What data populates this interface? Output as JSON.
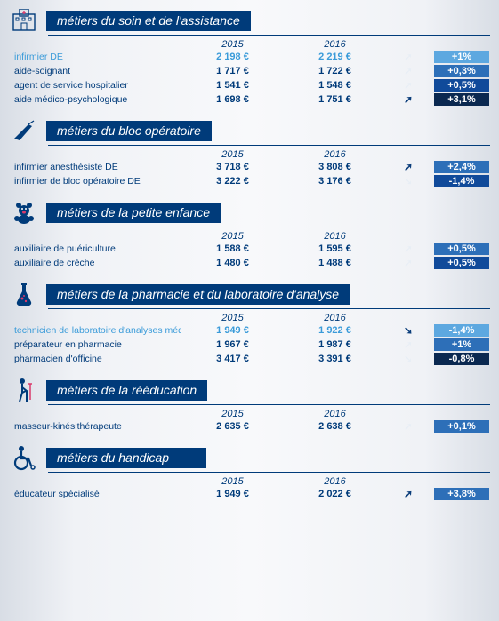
{
  "sections": [
    {
      "icon": "hospital",
      "title": "métiers du soin et de l'assistance",
      "years": [
        "2015",
        "2016"
      ],
      "rows": [
        {
          "name": "infirmier DE",
          "highlight": true,
          "v1": "2 198 €",
          "v2": "2 219 €",
          "arrow": "up",
          "arrowBold": false,
          "change": "+1%",
          "shade": "shade-1"
        },
        {
          "name": "aide-soignant",
          "highlight": false,
          "v1": "1 717 €",
          "v2": "1 722 €",
          "arrow": "up",
          "arrowBold": false,
          "change": "+0,3%",
          "shade": "shade-2"
        },
        {
          "name": "agent de service hospitalier",
          "highlight": false,
          "v1": "1 541 €",
          "v2": "1 548 €",
          "arrow": "up",
          "arrowBold": false,
          "change": "+0,5%",
          "shade": "shade-3"
        },
        {
          "name": "aide médico-psychologique",
          "highlight": false,
          "v1": "1 698 €",
          "v2": "1 751 €",
          "arrow": "up",
          "arrowBold": true,
          "change": "+3,1%",
          "shade": "shade-4"
        }
      ]
    },
    {
      "icon": "scalpel",
      "title": "métiers du bloc opératoire",
      "years": [
        "2015",
        "2016"
      ],
      "rows": [
        {
          "name": "infirmier anesthésiste DE",
          "highlight": false,
          "v1": "3 718 €",
          "v2": "3 808 €",
          "arrow": "up",
          "arrowBold": true,
          "change": "+2,4%",
          "shade": "shade-2"
        },
        {
          "name": "infirmier de bloc opératoire DE",
          "highlight": false,
          "v1": "3 222 €",
          "v2": "3 176 €",
          "arrow": "down",
          "arrowBold": false,
          "change": "-1,4%",
          "shade": "shade-3"
        }
      ]
    },
    {
      "icon": "teddy",
      "title": "métiers de la petite enfance",
      "years": [
        "2015",
        "2016"
      ],
      "rows": [
        {
          "name": "auxiliaire de puériculture",
          "highlight": false,
          "v1": "1 588 €",
          "v2": "1 595 €",
          "arrow": "up",
          "arrowBold": false,
          "change": "+0,5%",
          "shade": "shade-2"
        },
        {
          "name": "auxiliaire de crèche",
          "highlight": false,
          "v1": "1 480 €",
          "v2": "1 488 €",
          "arrow": "up",
          "arrowBold": false,
          "change": "+0,5%",
          "shade": "shade-3"
        }
      ]
    },
    {
      "icon": "flask",
      "title": "métiers de la pharmacie et du laboratoire d'analyse",
      "years": [
        "2015",
        "2016"
      ],
      "rows": [
        {
          "name": "technicien de laboratoire d'analyses médicales",
          "highlight": true,
          "v1": "1 949 €",
          "v2": "1 922 €",
          "arrow": "down",
          "arrowBold": true,
          "change": "-1,4%",
          "shade": "shade-1"
        },
        {
          "name": "préparateur en pharmacie",
          "highlight": false,
          "v1": "1 967 €",
          "v2": "1 987 €",
          "arrow": "up",
          "arrowBold": false,
          "change": "+1%",
          "shade": "shade-2"
        },
        {
          "name": "pharmacien d'officine",
          "highlight": false,
          "v1": "3 417 €",
          "v2": "3 391 €",
          "arrow": "down",
          "arrowBold": false,
          "change": "-0,8%",
          "shade": "shade-4"
        }
      ]
    },
    {
      "icon": "crutch",
      "title": "métiers de la rééducation",
      "years": [
        "2015",
        "2016"
      ],
      "rows": [
        {
          "name": "masseur-kinésithérapeute",
          "highlight": false,
          "v1": "2 635 €",
          "v2": "2 638 €",
          "arrow": "up",
          "arrowBold": false,
          "change": "+0,1%",
          "shade": "shade-2"
        }
      ]
    },
    {
      "icon": "wheelchair",
      "title": "métiers du handicap",
      "years": [
        "2015",
        "2016"
      ],
      "rows": [
        {
          "name": "éducateur spécialisé",
          "highlight": false,
          "v1": "1 949 €",
          "v2": "2 022 €",
          "arrow": "up",
          "arrowBold": true,
          "change": "+3,8%",
          "shade": "shade-2"
        }
      ]
    }
  ],
  "icons": {
    "hospital": "<svg width='30' height='26' viewBox='0 0 30 26'><rect x='3' y='6' width='24' height='18' fill='none' stroke='#003b7a' stroke-width='1.4'/><rect x='10' y='0' width='10' height='8' fill='none' stroke='#003b7a' stroke-width='1.4'/><path d='M15 2v4M13 4h4' stroke='#d93a6b' stroke-width='1.4'/><rect x='6' y='10' width='3' height='3' fill='none' stroke='#003b7a' stroke-width='1'/><rect x='13' y='10' width='3' height='3' fill='none' stroke='#003b7a' stroke-width='1'/><rect x='20' y='10' width='3' height='3' fill='none' stroke='#003b7a' stroke-width='1'/><rect x='12' y='16' width='6' height='8' fill='none' stroke='#003b7a' stroke-width='1'/></svg>",
    "scalpel": "<svg width='30' height='26' viewBox='0 0 30 26'><path d='M4 22 L20 6 L24 8 L10 24 Z' fill='#003b7a'/><path d='M20 6 L26 2' stroke='#003b7a' stroke-width='1.2'/></svg>",
    "teddy": "<svg width='30' height='26' viewBox='0 0 30 26'><circle cx='9' cy='5' r='3' fill='#003b7a'/><circle cx='21' cy='5' r='3' fill='#003b7a'/><circle cx='15' cy='11' r='6' fill='#003b7a'/><circle cx='13' cy='9' r='1' fill='#fff'/><circle cx='17' cy='9' r='1' fill='#fff'/><ellipse cx='15' cy='13' rx='2' ry='1.5' fill='#d93a6b'/><ellipse cx='15' cy='21' rx='7' ry='5' fill='#003b7a'/><circle cx='7' cy='20' r='3' fill='#003b7a'/><circle cx='23' cy='20' r='3' fill='#003b7a'/></svg>",
    "flask": "<svg width='30' height='30' viewBox='0 0 30 30'><path d='M12 3h6v2h-1v7l6 12a3 3 0 0 1-3 4H10a3 3 0 0 1-3-4l6-12V5h-1z' fill='#003b7a'/><circle cx='13' cy='20' r='1.5' fill='#d93a6b'/><circle cx='17' cy='23' r='1.2' fill='#d93a6b'/><circle cx='15' cy='17' r='1' fill='#d93a6b'/></svg>",
    "crutch": "<svg width='30' height='30' viewBox='0 0 30 30'><circle cx='13' cy='5' r='3' fill='#003b7a'/><path d='M13 8v10l-3 10M13 12l5 4v12M13 18l4-2' stroke='#003b7a' stroke-width='2' fill='none'/><path d='M22 8v18M20 8h4' stroke='#d93a6b' stroke-width='1.5'/></svg>",
    "wheelchair": "<svg width='30' height='30' viewBox='0 0 30 30'><circle cx='12' cy='5' r='3' fill='#003b7a'/><path d='M12 8v8h8l3 8' stroke='#003b7a' stroke-width='2.2' fill='none'/><circle cx='12' cy='21' r='7' fill='none' stroke='#003b7a' stroke-width='2.2'/><circle cx='25' cy='26' r='2' fill='none' stroke='#003b7a' stroke-width='1.5'/></svg>"
  },
  "arrows": {
    "up": "➚",
    "down": "➘"
  }
}
